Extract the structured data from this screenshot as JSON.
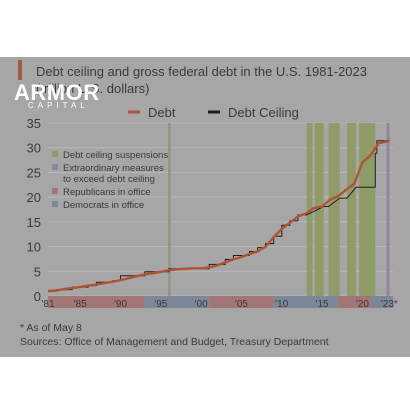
{
  "brand": {
    "name": "ARMOR",
    "sub": "CAPITAL"
  },
  "footnote": "* As of May 8",
  "sources": "Sources: Office of Management and Budget, Treasury Department",
  "chart_data": {
    "type": "line",
    "title": "Debt ceiling and gross federal debt in the U.S. 1981-2023",
    "subtitle": "(trillion U.S. dollars)",
    "xlim": [
      1981,
      2023.8
    ],
    "ylim": [
      0,
      35
    ],
    "yticks": [
      0,
      5,
      10,
      15,
      20,
      25,
      30,
      35
    ],
    "xticks": [
      {
        "value": 1981,
        "label": "'81"
      },
      {
        "value": 1985,
        "label": "'85"
      },
      {
        "value": 1990,
        "label": "'90"
      },
      {
        "value": 1995,
        "label": "'95"
      },
      {
        "value": 2000,
        "label": "'00"
      },
      {
        "value": 2005,
        "label": "'05"
      },
      {
        "value": 2010,
        "label": "'10"
      },
      {
        "value": 2015,
        "label": "'15"
      },
      {
        "value": 2020,
        "label": "'20"
      },
      {
        "value": 2023.35,
        "label": "'23*"
      }
    ],
    "grid": true,
    "legend": {
      "placement": "top",
      "entries": [
        {
          "name": "Debt",
          "color": "#b0542f"
        },
        {
          "name": "Debt Ceiling",
          "color": "#1e1e1e"
        }
      ]
    },
    "inner_legend": {
      "placement": "left",
      "entries": [
        {
          "label": "Debt ceiling suspensions",
          "color": "#8f9c67"
        },
        {
          "label": "Extraordinary measures to exceed debt ceiling",
          "color": "#8f85a0"
        },
        {
          "label": "Republicans in office",
          "color": "#a47575"
        },
        {
          "label": "Democrats in office",
          "color": "#7d879a"
        }
      ]
    },
    "suspensions": [
      [
        2013.1,
        2013.8
      ],
      [
        2014.1,
        2015.2
      ],
      [
        2015.8,
        2017.2
      ],
      [
        2018.1,
        2019.2
      ],
      [
        2019.6,
        2021.6
      ]
    ],
    "extraordinary_measures": [
      [
        1995.9,
        1996.2
      ],
      [
        2023.0,
        2023.35
      ]
    ],
    "administrations": [
      {
        "party": "Republican",
        "range": [
          1981,
          1993
        ]
      },
      {
        "party": "Democrat",
        "range": [
          1993,
          2001
        ]
      },
      {
        "party": "Republican",
        "range": [
          2001,
          2009
        ]
      },
      {
        "party": "Democrat",
        "range": [
          2009,
          2017
        ]
      },
      {
        "party": "Republican",
        "range": [
          2017,
          2021
        ]
      },
      {
        "party": "Democrat",
        "range": [
          2021,
          2023.8
        ]
      }
    ],
    "series": [
      {
        "name": "Debt",
        "x": [
          1981,
          1982,
          1983,
          1984,
          1985,
          1986,
          1987,
          1988,
          1989,
          1990,
          1991,
          1992,
          1993,
          1994,
          1995,
          1996,
          1997,
          1998,
          1999,
          2000,
          2001,
          2002,
          2003,
          2004,
          2005,
          2006,
          2007,
          2008,
          2009,
          2010,
          2011,
          2012,
          2013,
          2014,
          2015,
          2016,
          2017,
          2018,
          2019,
          2020,
          2021,
          2022,
          2023.35
        ],
        "values": [
          1.0,
          1.1,
          1.4,
          1.6,
          1.8,
          2.1,
          2.3,
          2.6,
          2.9,
          3.2,
          3.6,
          4.0,
          4.4,
          4.6,
          4.9,
          5.2,
          5.4,
          5.5,
          5.6,
          5.6,
          5.8,
          6.2,
          6.8,
          7.4,
          7.9,
          8.5,
          9.0,
          10.0,
          11.9,
          13.6,
          14.8,
          16.1,
          16.7,
          17.8,
          18.1,
          19.5,
          20.2,
          21.5,
          22.7,
          27.0,
          28.4,
          30.9,
          31.4
        ]
      },
      {
        "name": "Debt Ceiling",
        "x": [
          1981,
          1982,
          1982,
          1984,
          1984,
          1986,
          1986,
          1987,
          1987,
          1989,
          1989,
          1990,
          1990,
          1993,
          1993,
          1996,
          1996,
          2001,
          2001,
          2003,
          2003,
          2004,
          2004,
          2006,
          2006,
          2007,
          2007,
          2008,
          2008,
          2009,
          2009,
          2010,
          2010,
          2011,
          2011,
          2012,
          2012,
          2013.1,
          2015.2,
          2015.2,
          2015.8,
          2017.2,
          2017.2,
          2018.1,
          2019.2,
          2019.2,
          2021.6,
          2021.6,
          2021.8,
          2021.8,
          2023.35
        ],
        "values": [
          1.0,
          1.0,
          1.3,
          1.3,
          1.8,
          1.8,
          2.1,
          2.1,
          2.8,
          2.8,
          3.1,
          3.1,
          4.1,
          4.1,
          4.9,
          4.9,
          5.5,
          5.5,
          6.4,
          6.4,
          7.4,
          7.4,
          8.2,
          8.2,
          9.0,
          9.0,
          9.8,
          9.8,
          10.6,
          10.6,
          12.1,
          12.1,
          14.3,
          14.3,
          15.2,
          15.2,
          16.4,
          16.4,
          18.1,
          18.1,
          18.1,
          19.8,
          19.8,
          19.8,
          22.0,
          22.0,
          22.0,
          28.9,
          28.9,
          31.4,
          31.4
        ]
      }
    ]
  }
}
